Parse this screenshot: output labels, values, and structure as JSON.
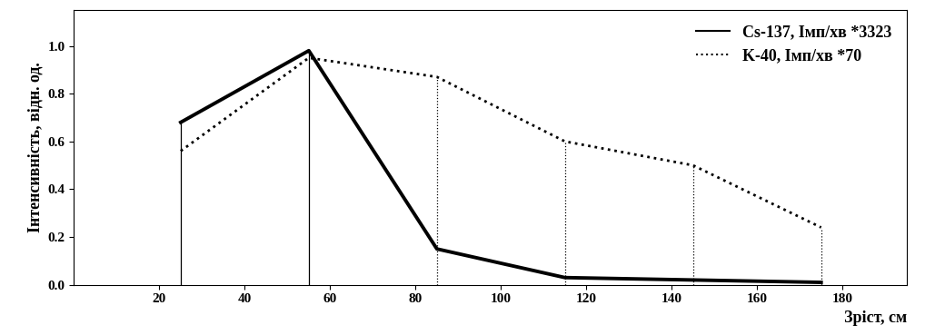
{
  "chart_data": {
    "type": "line",
    "x_label": "Зріст, см",
    "y_label": "Інтенсивність, відн. од.",
    "x": [
      25,
      55,
      85,
      115,
      145,
      175
    ],
    "series": [
      {
        "name": "Cs-137, Імп/хв *3323",
        "color": "#000000",
        "line_style": "solid",
        "values": [
          0.68,
          0.98,
          0.15,
          0.03,
          0.02,
          0.01
        ]
      },
      {
        "name": "K-40, Імп/хв *70",
        "color": "#000000",
        "line_style": "dotted",
        "values": [
          0.56,
          0.95,
          0.87,
          0.6,
          0.5,
          0.24
        ]
      }
    ],
    "xlim": [
      0,
      195
    ],
    "xticks": [
      20,
      40,
      60,
      80,
      100,
      120,
      140,
      160,
      180
    ],
    "ylim": [
      0,
      1.15
    ],
    "yticks": [
      {
        "value": 0,
        "label": "0.0"
      },
      {
        "value": 0.2,
        "label": "0.2"
      },
      {
        "value": 0.4,
        "label": "0.4"
      },
      {
        "value": 0.6,
        "label": "0.6"
      },
      {
        "value": 0.8,
        "label": "0.8"
      },
      {
        "value": 1.0,
        "label": "1.0"
      }
    ],
    "legend": "upper right",
    "grid": false
  }
}
